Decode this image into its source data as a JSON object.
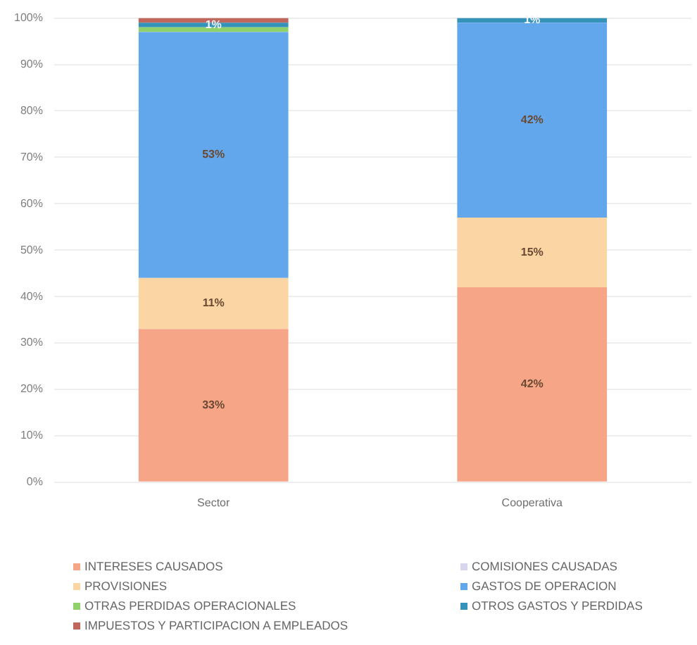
{
  "chart_data": {
    "type": "bar",
    "stacked": true,
    "categories": [
      "Sector",
      "Cooperativa"
    ],
    "ylim": [
      0,
      100
    ],
    "yticks": [
      {
        "value": 0,
        "label": "0%"
      },
      {
        "value": 10,
        "label": "10%"
      },
      {
        "value": 20,
        "label": "20%"
      },
      {
        "value": 30,
        "label": "30%"
      },
      {
        "value": 40,
        "label": "40%"
      },
      {
        "value": 50,
        "label": "50%"
      },
      {
        "value": 60,
        "label": "60%"
      },
      {
        "value": 70,
        "label": "70%"
      },
      {
        "value": 80,
        "label": "80%"
      },
      {
        "value": 90,
        "label": "90%"
      },
      {
        "value": 100,
        "label": "100%"
      }
    ],
    "grid": "y",
    "legend": "bottom",
    "series": [
      {
        "name": "INTERESES CAUSADOS",
        "color": "#f7a587",
        "values": [
          33,
          42
        ],
        "value_labels": [
          "33%",
          "42%"
        ]
      },
      {
        "name": "COMISIONES CAUSADAS",
        "color": "#d8d6ee",
        "values": [
          0,
          0
        ]
      },
      {
        "name": "PROVISIONES",
        "color": "#fbd5a4",
        "values": [
          11,
          15
        ],
        "value_labels": [
          "11%",
          "15%"
        ]
      },
      {
        "name": "GASTOS DE OPERACION",
        "color": "#62a6ec",
        "values": [
          53,
          42
        ],
        "value_labels": [
          "53%",
          "42%"
        ]
      },
      {
        "name": "OTRAS PERDIDAS OPERACIONALES",
        "color": "#8fd16b",
        "values": [
          1,
          0
        ]
      },
      {
        "name": "OTROS GASTOS Y PERDIDAS",
        "color": "#3592b8",
        "values": [
          1,
          1
        ],
        "value_labels": [
          "1%",
          "1%"
        ]
      },
      {
        "name": "IMPUESTOS Y PARTICIPACION A EMPLEADOS",
        "color": "#c0665c",
        "values": [
          1,
          0
        ]
      }
    ]
  }
}
